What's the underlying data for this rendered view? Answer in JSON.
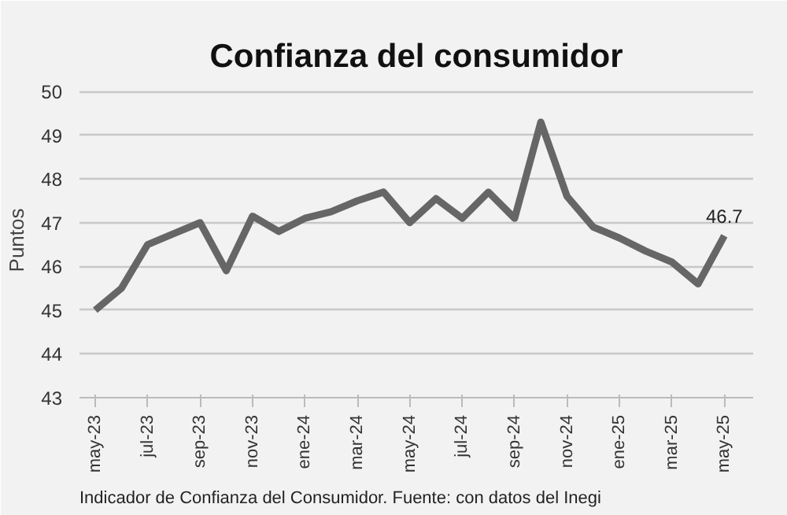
{
  "chart_data": {
    "type": "line",
    "title": "Confianza del consumidor",
    "ylabel": "Puntos",
    "categories": [
      "may-23",
      null,
      "jul-23",
      null,
      "sep-23",
      null,
      "nov-23",
      null,
      "ene-24",
      null,
      "mar-24",
      null,
      "may-24",
      null,
      "jul-24",
      null,
      "sep-24",
      null,
      "nov-24",
      null,
      "ene-25",
      null,
      "mar-25",
      null,
      "may-25"
    ],
    "series": [
      {
        "color": "#666666",
        "values": [
          45.0,
          45.5,
          46.5,
          46.75,
          47.0,
          45.9,
          47.15,
          46.8,
          47.1,
          47.25,
          47.5,
          47.7,
          47.0,
          47.55,
          47.1,
          47.7,
          47.1,
          49.3,
          47.6,
          46.9,
          46.65,
          46.35,
          46.1,
          45.6,
          46.7
        ],
        "value_labels": [
          null,
          null,
          null,
          null,
          null,
          null,
          null,
          null,
          null,
          null,
          null,
          null,
          null,
          null,
          null,
          null,
          null,
          null,
          null,
          null,
          null,
          null,
          null,
          null,
          "46.7"
        ]
      }
    ],
    "ylim": [
      43,
      50.2
    ],
    "yticks": [
      43,
      44,
      45,
      46,
      47,
      48,
      49,
      50
    ],
    "grid": "y",
    "marker": "none",
    "line_style": "solid",
    "annotations": [
      "Indicador de Confianza del Consumidor. Fuente: con datos del Inegi"
    ]
  }
}
